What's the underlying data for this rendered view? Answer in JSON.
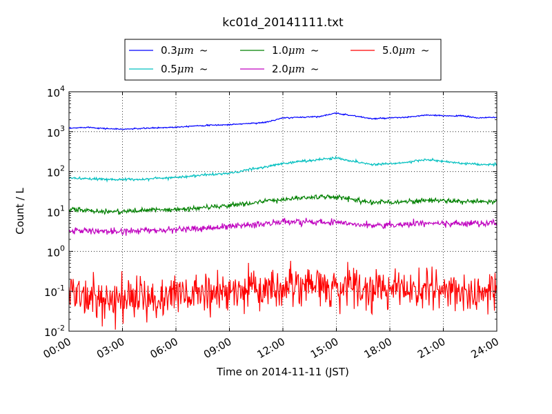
{
  "chart_data": {
    "type": "line",
    "title": "kc01d_20141111.txt",
    "xlabel": "Time on 2014-11-11 (JST)",
    "ylabel": "Count / L",
    "yscale": "log",
    "xlim": [
      "00:00",
      "24:00"
    ],
    "ylim": [
      0.01,
      10000
    ],
    "grid": true,
    "legend_position": "top-center, above the plot",
    "x_ticks": [
      "00:00",
      "03:00",
      "06:00",
      "09:00",
      "12:00",
      "15:00",
      "18:00",
      "21:00",
      "24:00"
    ],
    "y_ticks": [
      {
        "base": "10",
        "exp": "-2",
        "value": 0.01
      },
      {
        "base": "10",
        "exp": "-1",
        "value": 0.1
      },
      {
        "base": "10",
        "exp": "0",
        "value": 1
      },
      {
        "base": "10",
        "exp": "1",
        "value": 10
      },
      {
        "base": "10",
        "exp": "2",
        "value": 100
      },
      {
        "base": "10",
        "exp": "3",
        "value": 1000
      },
      {
        "base": "10",
        "exp": "4",
        "value": 10000
      }
    ],
    "x": [
      "00:00",
      "01:00",
      "02:00",
      "03:00",
      "04:00",
      "05:00",
      "06:00",
      "07:00",
      "08:00",
      "09:00",
      "10:00",
      "11:00",
      "12:00",
      "13:00",
      "14:00",
      "15:00",
      "16:00",
      "17:00",
      "18:00",
      "19:00",
      "20:00",
      "21:00",
      "22:00",
      "23:00",
      "24:00"
    ],
    "series": [
      {
        "name": "0.3",
        "color": "#0000ff",
        "noise": 0.008,
        "values": [
          1200,
          1300,
          1200,
          1150,
          1200,
          1250,
          1300,
          1400,
          1450,
          1500,
          1600,
          1700,
          2200,
          2300,
          2400,
          2900,
          2500,
          2100,
          2200,
          2300,
          2600,
          2500,
          2500,
          2200,
          2300
        ]
      },
      {
        "name": "0.5",
        "color": "#00bfbf",
        "noise": 0.015,
        "values": [
          70,
          65,
          65,
          63,
          64,
          68,
          72,
          78,
          85,
          90,
          110,
          130,
          160,
          180,
          200,
          220,
          180,
          150,
          160,
          170,
          200,
          180,
          160,
          150,
          150
        ]
      },
      {
        "name": "1.0",
        "color": "#008000",
        "noise": 0.03,
        "values": [
          11.5,
          10.5,
          10,
          10,
          10.5,
          11,
          11,
          12,
          13,
          14,
          16,
          18,
          20,
          22,
          23,
          23,
          20,
          17,
          17,
          18,
          19,
          19,
          18,
          17,
          18
        ]
      },
      {
        "name": "2.0",
        "color": "#bf00bf",
        "noise": 0.04,
        "values": [
          3.3,
          3.3,
          3.2,
          3.2,
          3.3,
          3.4,
          3.5,
          3.7,
          3.9,
          4.2,
          4.6,
          5.0,
          5.5,
          5.4,
          5.4,
          5.5,
          5.0,
          4.5,
          4.6,
          4.8,
          5.0,
          5.0,
          5.0,
          5.0,
          5.2
        ]
      },
      {
        "name": "5.0",
        "color": "#ff0000",
        "noise": 0.25,
        "values": [
          0.08,
          0.07,
          0.06,
          0.06,
          0.07,
          0.07,
          0.08,
          0.08,
          0.09,
          0.1,
          0.11,
          0.12,
          0.12,
          0.12,
          0.13,
          0.12,
          0.12,
          0.11,
          0.11,
          0.11,
          0.11,
          0.11,
          0.1,
          0.1,
          0.11
        ]
      }
    ],
    "legend": {
      "unit": "μm",
      "tilde": "~"
    }
  }
}
